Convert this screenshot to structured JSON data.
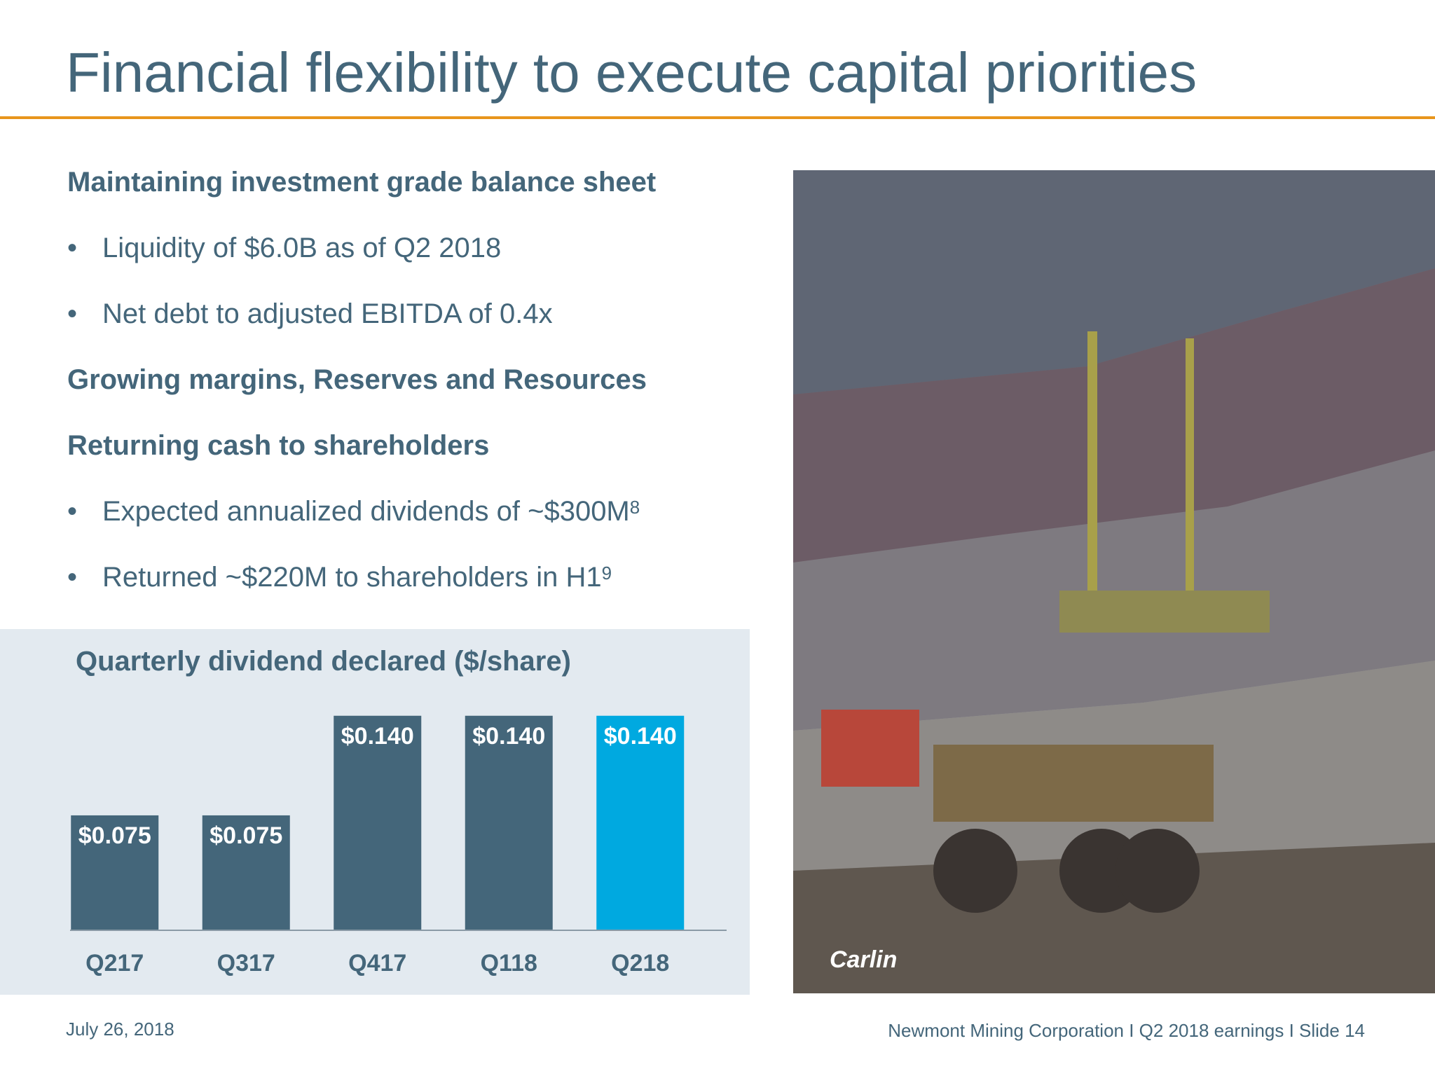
{
  "slide": {
    "title": "Financial flexibility to execute capital priorities",
    "date": "July 26, 2018",
    "footer": "Newmont Mining Corporation  I  Q2 2018 earnings  I  Slide 14",
    "accent_color": "#e8951c"
  },
  "content": {
    "heading1": "Maintaining investment grade balance sheet",
    "bullet1": "Liquidity of $6.0B as of Q2 2018",
    "bullet2": "Net debt to adjusted EBITDA of 0.4x",
    "heading2": "Growing margins, Reserves and Resources",
    "heading3": "Returning cash to shareholders",
    "bullet3": "Expected annualized dividends of ~$300M",
    "bullet3_sup": "8",
    "bullet4": "Returned ~$220M to shareholders in H1",
    "bullet4_sup": "9",
    "bullet_char": "•"
  },
  "photo": {
    "caption": "Carlin"
  },
  "chart_data": {
    "type": "bar",
    "title": "Quarterly dividend declared ($/share)",
    "categories": [
      "Q217",
      "Q317",
      "Q417",
      "Q118",
      "Q218"
    ],
    "values": [
      0.075,
      0.075,
      0.14,
      0.14,
      0.14
    ],
    "value_labels": [
      "$0.075",
      "$0.075",
      "$0.140",
      "$0.140",
      "$0.140"
    ],
    "ylim": [
      0,
      0.16
    ],
    "bar_colors": [
      "#44667a",
      "#44667a",
      "#44667a",
      "#44667a",
      "#00a9e0"
    ],
    "grid": false
  }
}
